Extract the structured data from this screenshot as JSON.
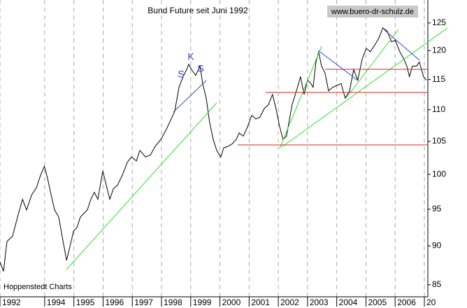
{
  "chart_data": {
    "type": "line",
    "title": "Bund Future seit Juni 1992",
    "annotations": [
      "S",
      "K",
      "S",
      "www.buero-dr-schulz.de",
      "Hoppenstedt Charts"
    ],
    "log_y": true,
    "grid": true,
    "xlim": [
      1992.47,
      2007.12
    ],
    "ylim": [
      83.5,
      129.3
    ],
    "xticks": [
      {
        "value": 1992.47,
        "label": "1992"
      },
      1994,
      1995,
      1996,
      1997,
      1998,
      1999,
      2000,
      2001,
      2002,
      2003,
      2004,
      2005,
      2006,
      {
        "value": 2007,
        "label": "20"
      }
    ],
    "yticks": [
      85,
      90,
      95,
      100,
      105,
      110,
      115,
      120,
      125
    ],
    "x": [
      1992.47,
      1992.59,
      1992.71,
      1992.9,
      1993.07,
      1993.24,
      1993.38,
      1993.55,
      1993.72,
      1993.86,
      1993.99,
      1994.1,
      1994.2,
      1994.34,
      1994.48,
      1994.63,
      1994.75,
      1994.87,
      1994.99,
      1995.11,
      1995.22,
      1995.34,
      1995.46,
      1995.58,
      1995.7,
      1995.82,
      1995.99,
      1996.11,
      1996.23,
      1996.35,
      1996.49,
      1996.66,
      1996.83,
      1996.97,
      1997.14,
      1997.26,
      1997.45,
      1997.62,
      1997.78,
      1997.98,
      1998.17,
      1998.33,
      1998.45,
      1998.6,
      1998.74,
      1998.86,
      1998.93,
      1999.03,
      1999.17,
      1999.32,
      1999.41,
      1999.53,
      1999.65,
      1999.77,
      1999.89,
      2000.03,
      2000.13,
      2000.27,
      2000.42,
      2000.56,
      2000.66,
      2000.8,
      2000.94,
      2001.09,
      2001.23,
      2001.37,
      2001.52,
      2001.66,
      2001.8,
      2001.92,
      2002.04,
      2002.16,
      2002.28,
      2002.47,
      2002.62,
      2002.76,
      2002.88,
      2003.0,
      2003.12,
      2003.19,
      2003.29,
      2003.38,
      2003.48,
      2003.6,
      2003.72,
      2003.86,
      2004.0,
      2004.15,
      2004.29,
      2004.44,
      2004.58,
      2004.72,
      2004.87,
      2005.01,
      2005.15,
      2005.3,
      2005.44,
      2005.58,
      2005.73,
      2005.87,
      2006.01,
      2006.16,
      2006.3,
      2006.4,
      2006.49,
      2006.59,
      2006.73,
      2006.83,
      2006.97,
      2007.07
    ],
    "series": [
      {
        "color": "#000000",
        "values": [
          87.9,
          86.7,
          90.6,
          91.3,
          93.9,
          96.4,
          94.9,
          97.0,
          98.1,
          99.9,
          101.2,
          99.4,
          97.4,
          94.9,
          93.9,
          90.6,
          88.1,
          90.0,
          92.0,
          92.5,
          93.9,
          94.4,
          94.9,
          96.4,
          97.4,
          96.4,
          100.5,
          98.4,
          96.4,
          97.9,
          98.4,
          99.9,
          101.8,
          102.6,
          102.0,
          103.6,
          102.6,
          102.9,
          104.2,
          105.3,
          106.9,
          108.5,
          109.7,
          113.7,
          115.5,
          116.7,
          117.6,
          116.7,
          115.7,
          117.3,
          114.3,
          111.9,
          107.9,
          105.3,
          103.6,
          102.6,
          104.0,
          104.2,
          104.6,
          105.3,
          106.3,
          105.8,
          107.2,
          109.1,
          108.5,
          108.8,
          110.2,
          110.8,
          112.5,
          110.2,
          107.4,
          105.3,
          105.8,
          110.8,
          113.1,
          115.5,
          112.5,
          114.9,
          114.3,
          113.7,
          118.0,
          119.8,
          117.3,
          116.1,
          113.1,
          113.7,
          114.0,
          114.3,
          111.9,
          113.1,
          116.7,
          114.9,
          118.5,
          120.4,
          119.8,
          121.0,
          122.2,
          124.1,
          123.5,
          121.6,
          121.8,
          119.8,
          118.5,
          117.3,
          115.5,
          117.3,
          117.3,
          118.0,
          115.5,
          114.9
        ]
      }
    ]
  }
}
